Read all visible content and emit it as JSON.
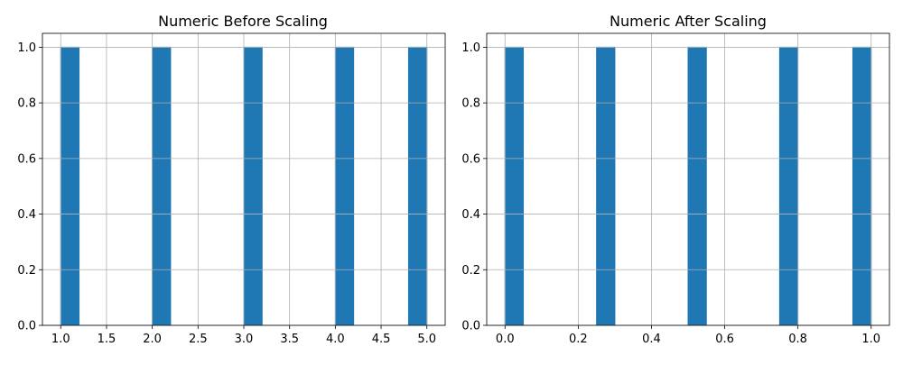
{
  "colors": {
    "bar": "#1f77b4",
    "grid": "#b0b0b0",
    "axis": "#000000",
    "background": "#ffffff"
  },
  "chart_data": [
    {
      "type": "bar",
      "title": "Numeric Before Scaling",
      "grid": true,
      "xlim": [
        0.8,
        5.2
      ],
      "ylim": [
        0,
        1.05
      ],
      "xticks": [
        "1.0",
        "1.5",
        "2.0",
        "2.5",
        "3.0",
        "3.5",
        "4.0",
        "4.5",
        "5.0"
      ],
      "yticks": [
        "0.0",
        "0.2",
        "0.4",
        "0.6",
        "0.8",
        "1.0"
      ],
      "bins": [
        {
          "x0": 1.0,
          "x1": 1.2,
          "count": 1
        },
        {
          "x0": 2.0,
          "x1": 2.2,
          "count": 1
        },
        {
          "x0": 3.0,
          "x1": 3.2,
          "count": 1
        },
        {
          "x0": 4.0,
          "x1": 4.2,
          "count": 1
        },
        {
          "x0": 4.8,
          "x1": 5.0,
          "count": 1
        }
      ]
    },
    {
      "type": "bar",
      "title": "Numeric After Scaling",
      "grid": true,
      "xlim": [
        -0.05,
        1.05
      ],
      "ylim": [
        0,
        1.05
      ],
      "xticks": [
        "0.0",
        "0.2",
        "0.4",
        "0.6",
        "0.8",
        "1.0"
      ],
      "yticks": [
        "0.0",
        "0.2",
        "0.4",
        "0.6",
        "0.8",
        "1.0"
      ],
      "bins": [
        {
          "x0": 0.0,
          "x1": 0.05,
          "count": 1
        },
        {
          "x0": 0.25,
          "x1": 0.3,
          "count": 1
        },
        {
          "x0": 0.5,
          "x1": 0.55,
          "count": 1
        },
        {
          "x0": 0.75,
          "x1": 0.8,
          "count": 1
        },
        {
          "x0": 0.95,
          "x1": 1.0,
          "count": 1
        }
      ]
    }
  ]
}
